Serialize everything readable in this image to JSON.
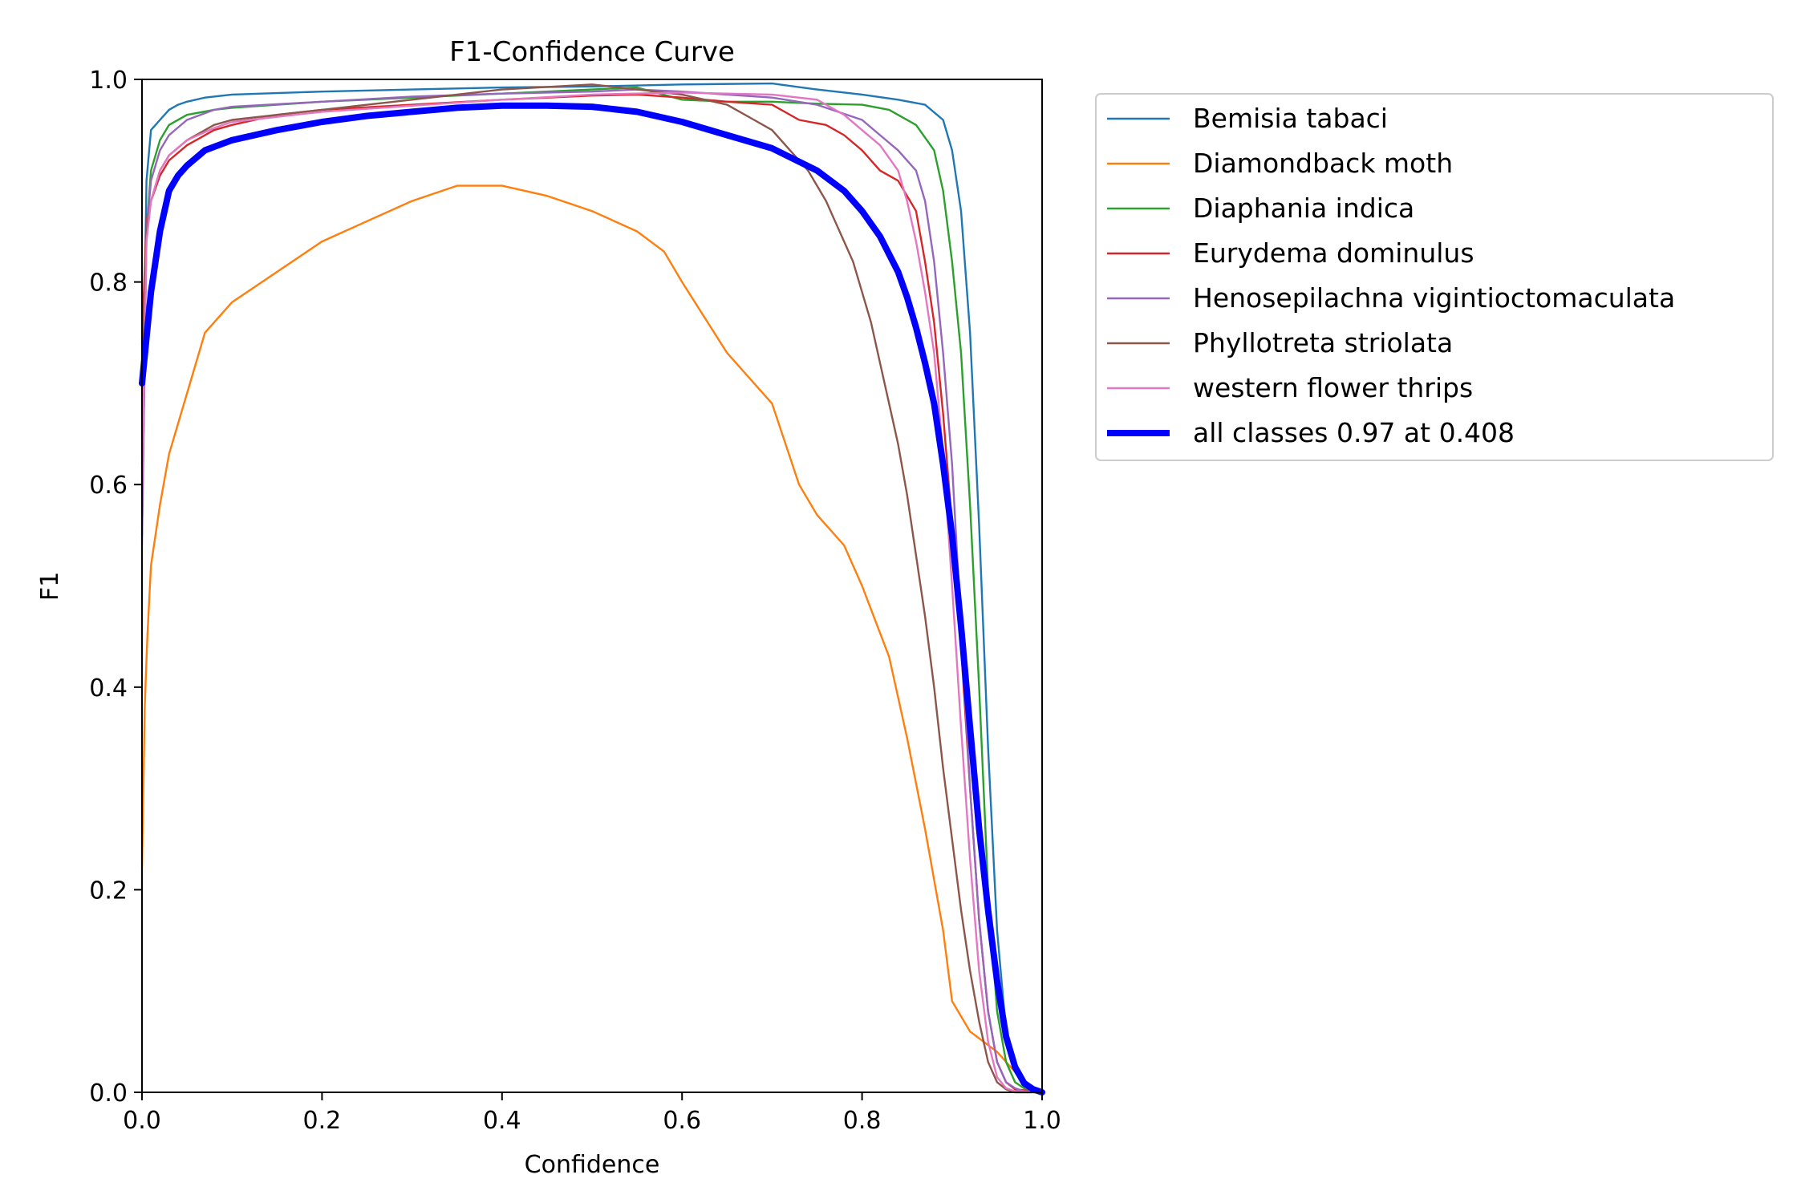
{
  "chart_data": {
    "type": "line",
    "title": "F1-Confidence Curve",
    "xlabel": "Confidence",
    "ylabel": "F1",
    "xlim": [
      0.0,
      1.0
    ],
    "ylim": [
      0.0,
      1.0
    ],
    "xticks": [
      "0.0",
      "0.2",
      "0.4",
      "0.6",
      "0.8",
      "1.0"
    ],
    "yticks": [
      "0.0",
      "0.2",
      "0.4",
      "0.6",
      "0.8",
      "1.0"
    ],
    "grid": false,
    "legend_position": "outside-right-top",
    "series": [
      {
        "name": "Bemisia tabaci",
        "color": "#1f77b4",
        "thick": false,
        "x": [
          0.0,
          0.005,
          0.01,
          0.02,
          0.03,
          0.04,
          0.05,
          0.07,
          0.1,
          0.2,
          0.3,
          0.4,
          0.5,
          0.6,
          0.7,
          0.75,
          0.8,
          0.84,
          0.87,
          0.89,
          0.9,
          0.91,
          0.92,
          0.93,
          0.94,
          0.95,
          0.96,
          0.97,
          0.98,
          0.99,
          1.0
        ],
        "y": [
          0.62,
          0.9,
          0.95,
          0.96,
          0.97,
          0.975,
          0.978,
          0.982,
          0.985,
          0.988,
          0.99,
          0.992,
          0.993,
          0.995,
          0.996,
          0.99,
          0.985,
          0.98,
          0.975,
          0.96,
          0.93,
          0.87,
          0.75,
          0.56,
          0.34,
          0.16,
          0.06,
          0.02,
          0.006,
          0.002,
          0.0
        ]
      },
      {
        "name": "Diamondback moth",
        "color": "#ff7f0e",
        "thick": false,
        "x": [
          0.0,
          0.003,
          0.006,
          0.01,
          0.02,
          0.03,
          0.04,
          0.05,
          0.07,
          0.1,
          0.15,
          0.2,
          0.25,
          0.3,
          0.35,
          0.4,
          0.45,
          0.5,
          0.55,
          0.58,
          0.6,
          0.65,
          0.7,
          0.73,
          0.75,
          0.78,
          0.8,
          0.83,
          0.85,
          0.87,
          0.89,
          0.9,
          0.92,
          0.95,
          0.97,
          0.98,
          1.0
        ],
        "y": [
          0.22,
          0.38,
          0.45,
          0.52,
          0.58,
          0.63,
          0.66,
          0.69,
          0.75,
          0.78,
          0.81,
          0.84,
          0.86,
          0.88,
          0.895,
          0.895,
          0.885,
          0.87,
          0.85,
          0.83,
          0.8,
          0.73,
          0.68,
          0.6,
          0.57,
          0.54,
          0.5,
          0.43,
          0.35,
          0.26,
          0.16,
          0.09,
          0.06,
          0.04,
          0.02,
          0.01,
          0.0
        ]
      },
      {
        "name": "Diaphania indica",
        "color": "#2ca02c",
        "thick": false,
        "x": [
          0.0,
          0.005,
          0.01,
          0.02,
          0.03,
          0.05,
          0.08,
          0.1,
          0.15,
          0.2,
          0.3,
          0.4,
          0.5,
          0.55,
          0.6,
          0.65,
          0.7,
          0.75,
          0.8,
          0.83,
          0.86,
          0.88,
          0.89,
          0.9,
          0.91,
          0.92,
          0.93,
          0.94,
          0.95,
          0.96,
          0.97,
          0.98,
          1.0
        ],
        "y": [
          0.55,
          0.85,
          0.91,
          0.94,
          0.955,
          0.965,
          0.97,
          0.972,
          0.975,
          0.978,
          0.982,
          0.986,
          0.99,
          0.992,
          0.98,
          0.978,
          0.978,
          0.976,
          0.975,
          0.97,
          0.955,
          0.93,
          0.89,
          0.82,
          0.73,
          0.58,
          0.4,
          0.2,
          0.08,
          0.03,
          0.01,
          0.004,
          0.0
        ]
      },
      {
        "name": "Eurydema dominulus",
        "color": "#d62728",
        "thick": false,
        "x": [
          0.0,
          0.005,
          0.01,
          0.02,
          0.03,
          0.05,
          0.08,
          0.1,
          0.15,
          0.2,
          0.3,
          0.4,
          0.5,
          0.55,
          0.6,
          0.65,
          0.7,
          0.73,
          0.76,
          0.78,
          0.8,
          0.82,
          0.84,
          0.86,
          0.87,
          0.88,
          0.89,
          0.9,
          0.91,
          0.92,
          0.93,
          0.94,
          0.95,
          0.96,
          0.97,
          1.0
        ],
        "y": [
          0.74,
          0.86,
          0.88,
          0.905,
          0.92,
          0.935,
          0.95,
          0.955,
          0.965,
          0.97,
          0.975,
          0.98,
          0.984,
          0.985,
          0.982,
          0.978,
          0.975,
          0.96,
          0.955,
          0.945,
          0.93,
          0.91,
          0.9,
          0.87,
          0.82,
          0.76,
          0.67,
          0.56,
          0.44,
          0.3,
          0.17,
          0.08,
          0.03,
          0.01,
          0.003,
          0.0
        ]
      },
      {
        "name": "Henosepilachna vigintioctomaculata",
        "color": "#9467bd",
        "thick": false,
        "x": [
          0.0,
          0.005,
          0.01,
          0.02,
          0.03,
          0.05,
          0.08,
          0.1,
          0.2,
          0.3,
          0.4,
          0.5,
          0.55,
          0.6,
          0.65,
          0.7,
          0.75,
          0.8,
          0.82,
          0.84,
          0.86,
          0.87,
          0.88,
          0.89,
          0.9,
          0.91,
          0.92,
          0.93,
          0.94,
          0.95,
          0.96,
          0.97,
          0.98,
          1.0
        ],
        "y": [
          0.54,
          0.85,
          0.9,
          0.93,
          0.945,
          0.96,
          0.97,
          0.973,
          0.978,
          0.983,
          0.986,
          0.988,
          0.99,
          0.988,
          0.985,
          0.982,
          0.975,
          0.96,
          0.945,
          0.93,
          0.91,
          0.88,
          0.82,
          0.73,
          0.62,
          0.46,
          0.3,
          0.17,
          0.08,
          0.03,
          0.01,
          0.004,
          0.001,
          0.0
        ]
      },
      {
        "name": "Phyllotreta striolata",
        "color": "#8c564b",
        "thick": false,
        "x": [
          0.0,
          0.005,
          0.01,
          0.02,
          0.03,
          0.05,
          0.08,
          0.1,
          0.2,
          0.3,
          0.4,
          0.5,
          0.55,
          0.6,
          0.65,
          0.68,
          0.7,
          0.72,
          0.74,
          0.76,
          0.77,
          0.78,
          0.79,
          0.8,
          0.81,
          0.82,
          0.83,
          0.84,
          0.85,
          0.86,
          0.87,
          0.88,
          0.89,
          0.9,
          0.91,
          0.92,
          0.93,
          0.94,
          0.95,
          0.96,
          0.97,
          1.0
        ],
        "y": [
          0.72,
          0.85,
          0.88,
          0.91,
          0.925,
          0.94,
          0.955,
          0.96,
          0.97,
          0.98,
          0.99,
          0.995,
          0.99,
          0.985,
          0.975,
          0.96,
          0.95,
          0.93,
          0.91,
          0.88,
          0.86,
          0.84,
          0.82,
          0.79,
          0.76,
          0.72,
          0.68,
          0.64,
          0.59,
          0.53,
          0.47,
          0.4,
          0.32,
          0.25,
          0.18,
          0.12,
          0.07,
          0.03,
          0.01,
          0.003,
          0.0,
          0.0
        ]
      },
      {
        "name": "western flower thrips",
        "color": "#e377c2",
        "thick": false,
        "x": [
          0.0,
          0.005,
          0.01,
          0.02,
          0.03,
          0.05,
          0.08,
          0.1,
          0.2,
          0.3,
          0.4,
          0.5,
          0.6,
          0.7,
          0.75,
          0.78,
          0.8,
          0.82,
          0.84,
          0.85,
          0.86,
          0.87,
          0.88,
          0.89,
          0.9,
          0.91,
          0.92,
          0.93,
          0.94,
          0.95,
          0.96,
          0.97,
          1.0
        ],
        "y": [
          0.6,
          0.84,
          0.88,
          0.91,
          0.925,
          0.94,
          0.952,
          0.958,
          0.968,
          0.974,
          0.98,
          0.985,
          0.987,
          0.985,
          0.98,
          0.965,
          0.95,
          0.935,
          0.91,
          0.88,
          0.84,
          0.79,
          0.73,
          0.63,
          0.5,
          0.36,
          0.23,
          0.12,
          0.05,
          0.015,
          0.004,
          0.001,
          0.0
        ]
      },
      {
        "name": "all classes 0.97 at 0.408",
        "color": "#0000ff",
        "thick": true,
        "x": [
          0.0,
          0.01,
          0.02,
          0.03,
          0.04,
          0.05,
          0.07,
          0.1,
          0.15,
          0.2,
          0.25,
          0.3,
          0.35,
          0.4,
          0.45,
          0.5,
          0.55,
          0.6,
          0.65,
          0.7,
          0.75,
          0.78,
          0.8,
          0.82,
          0.84,
          0.85,
          0.86,
          0.87,
          0.88,
          0.89,
          0.9,
          0.91,
          0.92,
          0.93,
          0.94,
          0.95,
          0.96,
          0.97,
          0.98,
          0.99,
          1.0
        ],
        "y": [
          0.7,
          0.79,
          0.85,
          0.89,
          0.905,
          0.915,
          0.93,
          0.94,
          0.95,
          0.958,
          0.964,
          0.968,
          0.972,
          0.974,
          0.974,
          0.973,
          0.968,
          0.958,
          0.945,
          0.932,
          0.91,
          0.89,
          0.87,
          0.845,
          0.81,
          0.785,
          0.755,
          0.72,
          0.68,
          0.62,
          0.55,
          0.46,
          0.36,
          0.26,
          0.18,
          0.11,
          0.055,
          0.025,
          0.009,
          0.003,
          0.0
        ]
      }
    ]
  }
}
